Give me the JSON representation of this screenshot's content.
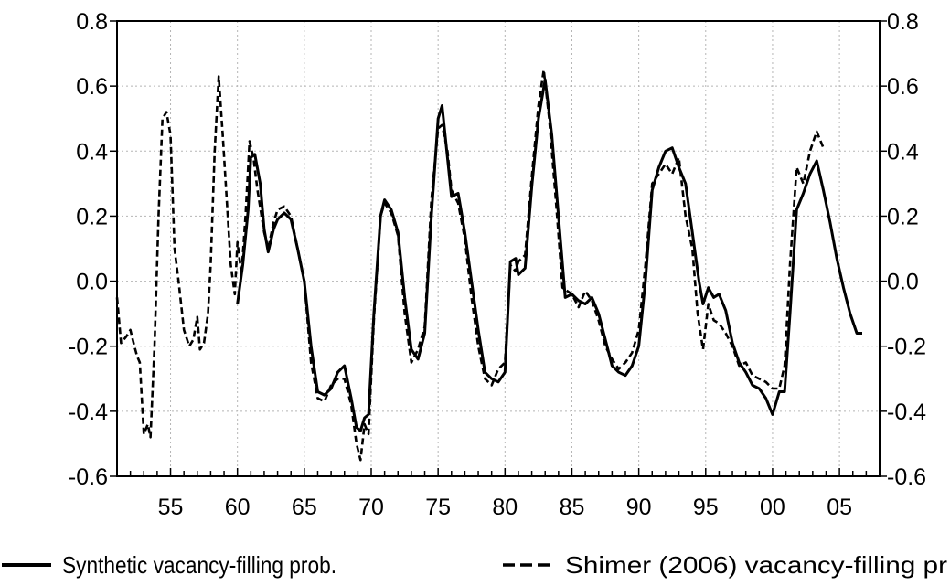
{
  "chart_data": {
    "type": "line",
    "title": "",
    "xlabel": "",
    "ylabel": "",
    "x_tick_labels": [
      "55",
      "60",
      "65",
      "70",
      "75",
      "80",
      "85",
      "90",
      "95",
      "00",
      "05"
    ],
    "x_tick_years": [
      1955,
      1960,
      1965,
      1970,
      1975,
      1980,
      1985,
      1990,
      1995,
      2000,
      2005
    ],
    "xlim": [
      1951,
      2008
    ],
    "ylim": [
      -0.6,
      0.8
    ],
    "y_tick_labels": [
      "0.8",
      "0.6",
      "0.4",
      "0.2",
      "0.0",
      "-0.2",
      "-0.4",
      "-0.6"
    ],
    "y_tick_values": [
      0.8,
      0.6,
      0.4,
      0.2,
      0.0,
      -0.2,
      -0.4,
      -0.6
    ],
    "grid": true,
    "legend_position": "bottom",
    "series": [
      {
        "name": "Synthetic vacancy-filling prob.",
        "style": "solid",
        "color": "#000000",
        "points": [
          [
            1960.0,
            -0.07
          ],
          [
            1960.4,
            0.05
          ],
          [
            1960.8,
            0.22
          ],
          [
            1961.0,
            0.38
          ],
          [
            1961.3,
            0.39
          ],
          [
            1961.7,
            0.3
          ],
          [
            1962.0,
            0.16
          ],
          [
            1962.3,
            0.09
          ],
          [
            1962.7,
            0.16
          ],
          [
            1963.0,
            0.19
          ],
          [
            1963.5,
            0.21
          ],
          [
            1964.0,
            0.19
          ],
          [
            1964.5,
            0.1
          ],
          [
            1965.0,
            0.0
          ],
          [
            1965.5,
            -0.2
          ],
          [
            1966.0,
            -0.34
          ],
          [
            1966.5,
            -0.35
          ],
          [
            1967.0,
            -0.33
          ],
          [
            1967.5,
            -0.28
          ],
          [
            1968.0,
            -0.26
          ],
          [
            1968.5,
            -0.36
          ],
          [
            1968.9,
            -0.45
          ],
          [
            1969.2,
            -0.46
          ],
          [
            1969.5,
            -0.42
          ],
          [
            1969.8,
            -0.41
          ],
          [
            1970.2,
            -0.1
          ],
          [
            1970.7,
            0.2
          ],
          [
            1971.0,
            0.25
          ],
          [
            1971.5,
            0.22
          ],
          [
            1972.0,
            0.15
          ],
          [
            1972.5,
            -0.05
          ],
          [
            1973.0,
            -0.21
          ],
          [
            1973.5,
            -0.24
          ],
          [
            1974.0,
            -0.16
          ],
          [
            1974.5,
            0.2
          ],
          [
            1975.0,
            0.5
          ],
          [
            1975.3,
            0.54
          ],
          [
            1975.7,
            0.38
          ],
          [
            1976.0,
            0.26
          ],
          [
            1976.5,
            0.27
          ],
          [
            1977.0,
            0.15
          ],
          [
            1977.5,
            0.0
          ],
          [
            1978.0,
            -0.15
          ],
          [
            1978.5,
            -0.28
          ],
          [
            1979.0,
            -0.3
          ],
          [
            1979.5,
            -0.31
          ],
          [
            1980.0,
            -0.28
          ],
          [
            1980.4,
            0.06
          ],
          [
            1980.8,
            0.07
          ],
          [
            1981.0,
            0.02
          ],
          [
            1981.5,
            0.04
          ],
          [
            1982.0,
            0.29
          ],
          [
            1982.5,
            0.5
          ],
          [
            1983.0,
            0.62
          ],
          [
            1983.5,
            0.45
          ],
          [
            1984.0,
            0.2
          ],
          [
            1984.5,
            -0.05
          ],
          [
            1985.0,
            -0.04
          ],
          [
            1985.5,
            -0.06
          ],
          [
            1986.0,
            -0.07
          ],
          [
            1986.5,
            -0.05
          ],
          [
            1987.0,
            -0.1
          ],
          [
            1987.5,
            -0.18
          ],
          [
            1988.0,
            -0.26
          ],
          [
            1988.5,
            -0.28
          ],
          [
            1989.0,
            -0.29
          ],
          [
            1989.5,
            -0.26
          ],
          [
            1990.0,
            -0.2
          ],
          [
            1990.5,
            0.0
          ],
          [
            1991.0,
            0.28
          ],
          [
            1991.5,
            0.35
          ],
          [
            1992.0,
            0.4
          ],
          [
            1992.5,
            0.41
          ],
          [
            1993.0,
            0.35
          ],
          [
            1993.5,
            0.3
          ],
          [
            1994.0,
            0.15
          ],
          [
            1994.5,
            0.0
          ],
          [
            1994.8,
            -0.07
          ],
          [
            1995.2,
            -0.02
          ],
          [
            1995.6,
            -0.05
          ],
          [
            1996.0,
            -0.04
          ],
          [
            1996.5,
            -0.09
          ],
          [
            1997.0,
            -0.19
          ],
          [
            1997.5,
            -0.25
          ],
          [
            1998.0,
            -0.28
          ],
          [
            1998.5,
            -0.32
          ],
          [
            1999.0,
            -0.33
          ],
          [
            1999.5,
            -0.36
          ],
          [
            2000.0,
            -0.41
          ],
          [
            2000.5,
            -0.34
          ],
          [
            2000.9,
            -0.34
          ],
          [
            2001.3,
            -0.1
          ],
          [
            2001.8,
            0.22
          ],
          [
            2002.3,
            0.27
          ],
          [
            2002.8,
            0.33
          ],
          [
            2003.3,
            0.37
          ],
          [
            2003.8,
            0.28
          ],
          [
            2004.3,
            0.18
          ],
          [
            2004.8,
            0.07
          ],
          [
            2005.3,
            -0.02
          ],
          [
            2005.8,
            -0.1
          ],
          [
            2006.3,
            -0.16
          ],
          [
            2006.7,
            -0.16
          ]
        ]
      },
      {
        "name": "Shimer (2006) vacancy-filling pr",
        "style": "dashed",
        "color": "#000000",
        "points": [
          [
            1951.0,
            -0.05
          ],
          [
            1951.3,
            -0.19
          ],
          [
            1951.7,
            -0.17
          ],
          [
            1952.0,
            -0.15
          ],
          [
            1952.3,
            -0.2
          ],
          [
            1952.5,
            -0.23
          ],
          [
            1952.7,
            -0.25
          ],
          [
            1953.0,
            -0.47
          ],
          [
            1953.3,
            -0.44
          ],
          [
            1953.5,
            -0.48
          ],
          [
            1953.8,
            -0.2
          ],
          [
            1954.1,
            0.2
          ],
          [
            1954.4,
            0.5
          ],
          [
            1954.7,
            0.52
          ],
          [
            1955.0,
            0.45
          ],
          [
            1955.3,
            0.1
          ],
          [
            1955.6,
            0.0
          ],
          [
            1956.0,
            -0.15
          ],
          [
            1956.4,
            -0.2
          ],
          [
            1956.7,
            -0.18
          ],
          [
            1957.0,
            -0.11
          ],
          [
            1957.2,
            -0.21
          ],
          [
            1957.5,
            -0.19
          ],
          [
            1957.8,
            -0.1
          ],
          [
            1958.0,
            0.05
          ],
          [
            1958.3,
            0.4
          ],
          [
            1958.6,
            0.63
          ],
          [
            1958.9,
            0.45
          ],
          [
            1959.2,
            0.25
          ],
          [
            1959.5,
            0.05
          ],
          [
            1959.8,
            -0.04
          ],
          [
            1960.0,
            0.12
          ],
          [
            1960.3,
            0.02
          ],
          [
            1960.6,
            0.2
          ],
          [
            1960.9,
            0.43
          ],
          [
            1961.2,
            0.38
          ],
          [
            1961.5,
            0.28
          ],
          [
            1962.0,
            0.15
          ],
          [
            1962.3,
            0.1
          ],
          [
            1962.7,
            0.18
          ],
          [
            1963.0,
            0.22
          ],
          [
            1963.5,
            0.23
          ],
          [
            1964.0,
            0.2
          ],
          [
            1964.5,
            0.1
          ],
          [
            1965.0,
            0.0
          ],
          [
            1965.5,
            -0.25
          ],
          [
            1966.0,
            -0.36
          ],
          [
            1966.5,
            -0.37
          ],
          [
            1967.0,
            -0.32
          ],
          [
            1967.5,
            -0.3
          ],
          [
            1968.0,
            -0.3
          ],
          [
            1968.5,
            -0.38
          ],
          [
            1968.9,
            -0.5
          ],
          [
            1969.2,
            -0.55
          ],
          [
            1969.5,
            -0.44
          ],
          [
            1969.8,
            -0.47
          ],
          [
            1970.2,
            -0.12
          ],
          [
            1970.7,
            0.2
          ],
          [
            1971.0,
            0.24
          ],
          [
            1971.5,
            0.21
          ],
          [
            1972.0,
            0.14
          ],
          [
            1972.5,
            -0.1
          ],
          [
            1973.0,
            -0.25
          ],
          [
            1973.5,
            -0.21
          ],
          [
            1974.0,
            -0.14
          ],
          [
            1974.5,
            0.25
          ],
          [
            1975.0,
            0.47
          ],
          [
            1975.3,
            0.48
          ],
          [
            1975.7,
            0.4
          ],
          [
            1976.0,
            0.28
          ],
          [
            1976.5,
            0.24
          ],
          [
            1977.0,
            0.13
          ],
          [
            1977.5,
            -0.05
          ],
          [
            1978.0,
            -0.2
          ],
          [
            1978.5,
            -0.3
          ],
          [
            1979.0,
            -0.32
          ],
          [
            1979.5,
            -0.27
          ],
          [
            1980.0,
            -0.25
          ],
          [
            1980.4,
            0.05
          ],
          [
            1980.8,
            0.03
          ],
          [
            1981.0,
            0.06
          ],
          [
            1981.5,
            0.08
          ],
          [
            1982.0,
            0.32
          ],
          [
            1982.5,
            0.54
          ],
          [
            1982.9,
            0.65
          ],
          [
            1983.3,
            0.5
          ],
          [
            1983.8,
            0.25
          ],
          [
            1984.3,
            -0.02
          ],
          [
            1985.0,
            -0.04
          ],
          [
            1985.5,
            -0.08
          ],
          [
            1986.0,
            -0.03
          ],
          [
            1986.5,
            -0.06
          ],
          [
            1987.0,
            -0.12
          ],
          [
            1987.5,
            -0.2
          ],
          [
            1988.0,
            -0.24
          ],
          [
            1988.5,
            -0.27
          ],
          [
            1989.0,
            -0.25
          ],
          [
            1989.5,
            -0.22
          ],
          [
            1990.0,
            -0.15
          ],
          [
            1990.5,
            0.05
          ],
          [
            1991.0,
            0.3
          ],
          [
            1991.5,
            0.33
          ],
          [
            1992.0,
            0.36
          ],
          [
            1992.5,
            0.33
          ],
          [
            1993.0,
            0.38
          ],
          [
            1993.5,
            0.2
          ],
          [
            1994.0,
            0.1
          ],
          [
            1994.4,
            -0.1
          ],
          [
            1994.8,
            -0.21
          ],
          [
            1995.2,
            -0.07
          ],
          [
            1995.6,
            -0.12
          ],
          [
            1996.0,
            -0.13
          ],
          [
            1996.5,
            -0.16
          ],
          [
            1997.0,
            -0.2
          ],
          [
            1997.5,
            -0.26
          ],
          [
            1998.0,
            -0.25
          ],
          [
            1998.5,
            -0.29
          ],
          [
            1999.0,
            -0.3
          ],
          [
            1999.5,
            -0.31
          ],
          [
            2000.0,
            -0.33
          ],
          [
            2000.5,
            -0.33
          ],
          [
            2000.9,
            -0.26
          ],
          [
            2001.3,
            0.05
          ],
          [
            2001.8,
            0.35
          ],
          [
            2002.3,
            0.3
          ],
          [
            2002.8,
            0.4
          ],
          [
            2003.3,
            0.46
          ],
          [
            2003.8,
            0.41
          ]
        ]
      }
    ]
  }
}
